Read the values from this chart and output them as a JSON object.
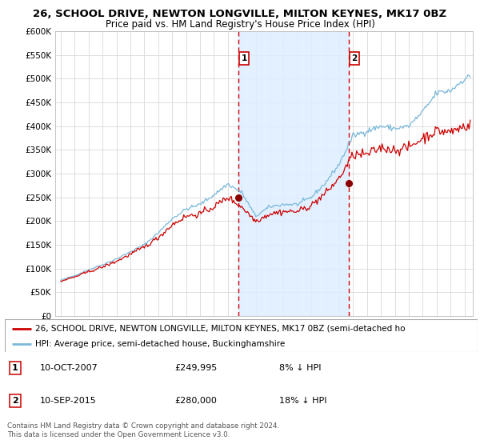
{
  "title": "26, SCHOOL DRIVE, NEWTON LONGVILLE, MILTON KEYNES, MK17 0BZ",
  "subtitle": "Price paid vs. HM Land Registry's House Price Index (HPI)",
  "ylim": [
    0,
    600000
  ],
  "yticks": [
    0,
    50000,
    100000,
    150000,
    200000,
    250000,
    300000,
    350000,
    400000,
    450000,
    500000,
    550000,
    600000
  ],
  "hpi_color": "#7ab8d9",
  "price_color": "#cc0000",
  "dot_color": "#8b0000",
  "vline_color": "#cc0000",
  "shade_color": "#ddeeff",
  "purchase1_year": 2007.78,
  "purchase1_price": 249995,
  "purchase2_year": 2015.7,
  "purchase2_price": 280000,
  "legend_price_label": "26, SCHOOL DRIVE, NEWTON LONGVILLE, MILTON KEYNES, MK17 0BZ (semi-detached ho",
  "legend_hpi_label": "HPI: Average price, semi-detached house, Buckinghamshire",
  "annotation1_text": "10-OCT-2007",
  "annotation1_price": "£249,995",
  "annotation1_hpi": "8% ↓ HPI",
  "annotation2_text": "10-SEP-2015",
  "annotation2_price": "£280,000",
  "annotation2_hpi": "18% ↓ HPI",
  "footer1": "Contains HM Land Registry data © Crown copyright and database right 2024.",
  "footer2": "This data is licensed under the Open Government Licence v3.0.",
  "background_color": "#ffffff",
  "plot_bg_color": "#ffffff",
  "grid_color": "#dddddd"
}
